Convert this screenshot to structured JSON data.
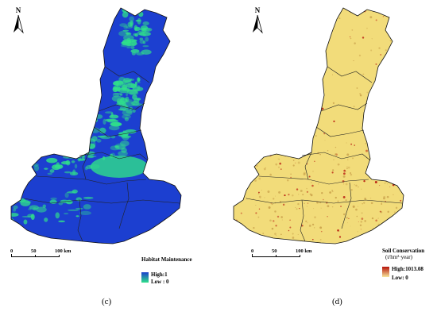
{
  "panels": [
    {
      "id": "c",
      "caption": "(c)",
      "north_label": "N",
      "legend": {
        "title": "Habitat Maintenance",
        "high": "High:1",
        "low": "Low : 0",
        "colors": {
          "high": "#1a3fcc",
          "low": "#2fe08a",
          "base": "#1c3fd0"
        }
      },
      "scale": {
        "labels": [
          "0",
          "50",
          "100 km"
        ]
      }
    },
    {
      "id": "d",
      "caption": "(d)",
      "north_label": "N",
      "legend": {
        "title": "Soil Conservation",
        "unit": "(t/hm²·year)",
        "high": "High:1013.08",
        "low": "Low: 0",
        "colors": {
          "high": "#b5120a",
          "low": "#f7e79c",
          "base": "#f2dc7a"
        }
      },
      "scale": {
        "labels": [
          "0",
          "50",
          "100 km"
        ]
      }
    }
  ]
}
